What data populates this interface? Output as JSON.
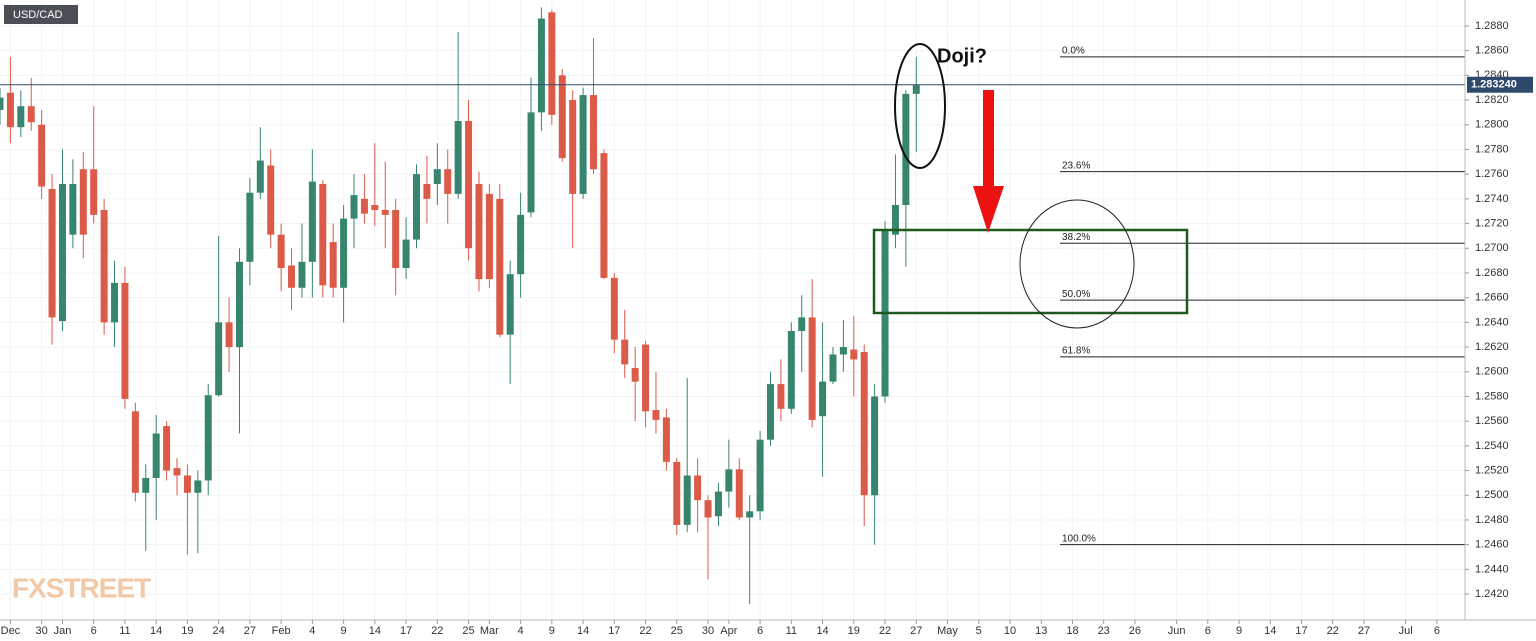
{
  "chart_data": {
    "type": "candlestick",
    "title": "USD/CAD",
    "annotation": "Doji?",
    "watermark": "FXSTREET",
    "up_color": "#38856f",
    "down_color": "#dc5a48",
    "grid": true,
    "xlim": [
      0,
      140.7
    ],
    "ylim": [
      1.2399,
      1.2901
    ],
    "yticks": [
      {
        "value": 1.242,
        "label": "1.2420"
      },
      {
        "value": 1.244,
        "label": "1.2440"
      },
      {
        "value": 1.246,
        "label": "1.2460"
      },
      {
        "value": 1.248,
        "label": "1.2480"
      },
      {
        "value": 1.25,
        "label": "1.2500"
      },
      {
        "value": 1.252,
        "label": "1.2520"
      },
      {
        "value": 1.254,
        "label": "1.2540"
      },
      {
        "value": 1.256,
        "label": "1.2560"
      },
      {
        "value": 1.258,
        "label": "1.2580"
      },
      {
        "value": 1.26,
        "label": "1.2600"
      },
      {
        "value": 1.262,
        "label": "1.2620"
      },
      {
        "value": 1.264,
        "label": "1.2640"
      },
      {
        "value": 1.266,
        "label": "1.2660"
      },
      {
        "value": 1.268,
        "label": "1.2680"
      },
      {
        "value": 1.27,
        "label": "1.2700"
      },
      {
        "value": 1.272,
        "label": "1.2720"
      },
      {
        "value": 1.274,
        "label": "1.2740"
      },
      {
        "value": 1.276,
        "label": "1.2760"
      },
      {
        "value": 1.278,
        "label": "1.2780"
      },
      {
        "value": 1.28,
        "label": "1.2800"
      },
      {
        "value": 1.282,
        "label": "1.2820"
      },
      {
        "value": 1.284,
        "label": "1.2840"
      },
      {
        "value": 1.286,
        "label": "1.2860"
      },
      {
        "value": 1.288,
        "label": "1.2880"
      }
    ],
    "xticks": [
      {
        "value": 1,
        "label": "Dec"
      },
      {
        "value": 4,
        "label": "30"
      },
      {
        "value": 6,
        "label": "Jan"
      },
      {
        "value": 9,
        "label": "6"
      },
      {
        "value": 12,
        "label": "11"
      },
      {
        "value": 15,
        "label": "14"
      },
      {
        "value": 18,
        "label": "19"
      },
      {
        "value": 21,
        "label": "24"
      },
      {
        "value": 24,
        "label": "27"
      },
      {
        "value": 27,
        "label": "Feb"
      },
      {
        "value": 30,
        "label": "4"
      },
      {
        "value": 33,
        "label": "9"
      },
      {
        "value": 36,
        "label": "14"
      },
      {
        "value": 39,
        "label": "17"
      },
      {
        "value": 42,
        "label": "22"
      },
      {
        "value": 45,
        "label": "25"
      },
      {
        "value": 47,
        "label": "Mar"
      },
      {
        "value": 50,
        "label": "4"
      },
      {
        "value": 53,
        "label": "9"
      },
      {
        "value": 56,
        "label": "14"
      },
      {
        "value": 59,
        "label": "17"
      },
      {
        "value": 62,
        "label": "22"
      },
      {
        "value": 65,
        "label": "25"
      },
      {
        "value": 68,
        "label": "30"
      },
      {
        "value": 70,
        "label": "Apr"
      },
      {
        "value": 73,
        "label": "6"
      },
      {
        "value": 76,
        "label": "11"
      },
      {
        "value": 79,
        "label": "14"
      },
      {
        "value": 82,
        "label": "19"
      },
      {
        "value": 85,
        "label": "22"
      },
      {
        "value": 88,
        "label": "27"
      },
      {
        "value": 91,
        "label": "May"
      },
      {
        "value": 94,
        "label": "5"
      },
      {
        "value": 97,
        "label": "10"
      },
      {
        "value": 100,
        "label": "13"
      },
      {
        "value": 103,
        "label": "18"
      },
      {
        "value": 106,
        "label": "23"
      },
      {
        "value": 109,
        "label": "26"
      },
      {
        "value": 113,
        "label": "Jun"
      },
      {
        "value": 116,
        "label": "6"
      },
      {
        "value": 119,
        "label": "9"
      },
      {
        "value": 122,
        "label": "14"
      },
      {
        "value": 125,
        "label": "17"
      },
      {
        "value": 128,
        "label": "22"
      },
      {
        "value": 131,
        "label": "27"
      },
      {
        "value": 135,
        "label": "Jul"
      },
      {
        "value": 138,
        "label": "6"
      }
    ],
    "last_price": {
      "value": 1.28324,
      "label": "1.283240"
    },
    "fib_levels": [
      {
        "value": 1.2855,
        "label": "0.0%"
      },
      {
        "value": 1.2762,
        "label": "23.6%"
      },
      {
        "value": 1.2704,
        "label": "38.2%"
      },
      {
        "value": 1.2658,
        "label": "50.0%"
      },
      {
        "value": 1.2612,
        "label": "61.8%"
      },
      {
        "value": 1.246,
        "label": "100.0%"
      }
    ],
    "open": [
      1.2812,
      1.2826,
      1.2798,
      1.2815,
      1.28,
      1.2748,
      1.2641,
      1.2711,
      1.2764,
      1.2764,
      1.2731,
      1.264,
      1.2672,
      1.2568,
      1.2502,
      1.2514,
      1.2556,
      1.2522,
      1.2516,
      1.2502,
      1.2512,
      1.2581,
      1.264,
      1.262,
      1.2689,
      1.2745,
      1.2767,
      1.2711,
      1.2686,
      1.2668,
      1.2689,
      1.2752,
      1.2705,
      1.2668,
      1.2724,
      1.274,
      1.2735,
      1.2731,
      1.2731,
      1.2684,
      1.2707,
      1.2752,
      1.2752,
      1.2764,
      1.2744,
      1.2803,
      1.2752,
      1.2744,
      1.274,
      1.263,
      1.2679,
      1.2729,
      1.281,
      1.2891,
      1.284,
      1.282,
      1.2744,
      1.2824,
      1.2777,
      1.2676,
      1.2626,
      1.2603,
      1.2622,
      1.2569,
      1.2563,
      1.2527,
      1.2476,
      1.2516,
      1.2496,
      1.2483,
      1.2503,
      1.2521,
      1.2482,
      1.2487,
      1.2545,
      1.259,
      1.257,
      1.2633,
      1.2644,
      1.2564,
      1.2592,
      1.2614,
      1.2618,
      1.2616,
      1.25,
      1.258,
      1.2711,
      1.2735,
      1.2825
    ],
    "high": [
      1.283,
      1.2855,
      1.2828,
      1.2838,
      1.2812,
      1.276,
      1.278,
      1.2772,
      1.2778,
      1.2815,
      1.274,
      1.269,
      1.2685,
      1.2575,
      1.2525,
      1.2565,
      1.256,
      1.253,
      1.2525,
      1.252,
      1.259,
      1.271,
      1.266,
      1.27,
      1.2757,
      1.2798,
      1.278,
      1.272,
      1.27,
      1.272,
      1.278,
      1.2755,
      1.272,
      1.2735,
      1.276,
      1.276,
      1.2785,
      1.277,
      1.274,
      1.2725,
      1.2768,
      1.2775,
      1.2785,
      1.278,
      1.2875,
      1.282,
      1.2762,
      1.2752,
      1.2752,
      1.269,
      1.2745,
      1.2838,
      1.2895,
      1.2893,
      1.2845,
      1.2828,
      1.283,
      1.287,
      1.278,
      1.268,
      1.265,
      1.262,
      1.2625,
      1.26,
      1.257,
      1.253,
      1.2595,
      1.253,
      1.25,
      1.251,
      1.2545,
      1.253,
      1.25,
      1.2552,
      1.26,
      1.261,
      1.264,
      1.2662,
      1.2675,
      1.264,
      1.262,
      1.2642,
      1.2645,
      1.2622,
      1.259,
      1.2722,
      1.2776,
      1.2828,
      1.2855
    ],
    "low": [
      1.28,
      1.2785,
      1.279,
      1.2795,
      1.274,
      1.2622,
      1.2633,
      1.27,
      1.2692,
      1.272,
      1.263,
      1.262,
      1.257,
      1.2495,
      1.2455,
      1.248,
      1.2512,
      1.25,
      1.2452,
      1.2453,
      1.25,
      1.258,
      1.26,
      1.255,
      1.267,
      1.274,
      1.27,
      1.2665,
      1.265,
      1.266,
      1.266,
      1.266,
      1.266,
      1.264,
      1.27,
      1.272,
      1.2718,
      1.27,
      1.2662,
      1.2675,
      1.27,
      1.272,
      1.2735,
      1.272,
      1.274,
      1.269,
      1.2665,
      1.2668,
      1.2628,
      1.259,
      1.266,
      1.2725,
      1.2795,
      1.28,
      1.277,
      1.27,
      1.274,
      1.276,
      1.2675,
      1.2615,
      1.2595,
      1.256,
      1.2555,
      1.255,
      1.252,
      1.2468,
      1.247,
      1.247,
      1.2432,
      1.2475,
      1.249,
      1.248,
      1.2412,
      1.248,
      1.254,
      1.256,
      1.2566,
      1.26,
      1.2555,
      1.2515,
      1.259,
      1.26,
      1.258,
      1.2475,
      1.246,
      1.2575,
      1.27,
      1.2685,
      1.2778
    ],
    "close": [
      1.2822,
      1.2798,
      1.2815,
      1.2802,
      1.275,
      1.2644,
      1.2752,
      1.2752,
      1.2711,
      1.2727,
      1.264,
      1.2672,
      1.2578,
      1.2502,
      1.2514,
      1.255,
      1.252,
      1.2516,
      1.2502,
      1.2512,
      1.2581,
      1.264,
      1.262,
      1.2689,
      1.2745,
      1.2771,
      1.2711,
      1.2684,
      1.2668,
      1.2689,
      1.2754,
      1.267,
      1.2668,
      1.2724,
      1.2743,
      1.2728,
      1.2731,
      1.2727,
      1.2684,
      1.2707,
      1.276,
      1.274,
      1.2764,
      1.2744,
      1.2803,
      1.27,
      1.2675,
      1.2675,
      1.263,
      1.2679,
      1.2727,
      1.281,
      1.2886,
      1.2808,
      1.2773,
      1.2744,
      1.2824,
      1.2764,
      1.2676,
      1.2626,
      1.2606,
      1.2592,
      1.2568,
      1.2561,
      1.2527,
      1.2476,
      1.2516,
      1.2496,
      1.2482,
      1.2503,
      1.2521,
      1.2482,
      1.2487,
      1.2545,
      1.259,
      1.257,
      1.2633,
      1.2644,
      1.2561,
      1.2592,
      1.2614,
      1.262,
      1.261,
      1.25,
      1.258,
      1.2715,
      1.2735,
      1.2825,
      1.2832
    ]
  }
}
